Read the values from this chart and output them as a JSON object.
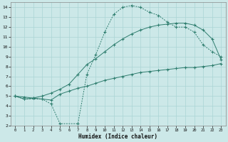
{
  "xlabel": "Humidex (Indice chaleur)",
  "xlim": [
    -0.5,
    23.5
  ],
  "ylim": [
    2,
    14.5
  ],
  "xticks": [
    0,
    1,
    2,
    3,
    4,
    5,
    6,
    7,
    8,
    9,
    10,
    11,
    12,
    13,
    14,
    15,
    16,
    17,
    18,
    19,
    20,
    21,
    22,
    23
  ],
  "yticks": [
    2,
    3,
    4,
    5,
    6,
    7,
    8,
    9,
    10,
    11,
    12,
    13,
    14
  ],
  "bg_color": "#cce8e8",
  "line_color": "#2e7d6e",
  "grid_color": "#aad4d4",
  "line1_x": [
    0,
    1,
    2,
    3,
    4,
    5,
    6,
    7,
    8,
    9,
    10,
    11,
    12,
    13,
    14,
    15,
    16,
    17,
    18,
    19,
    20,
    21,
    22,
    23
  ],
  "line1_y": [
    5.0,
    4.7,
    4.8,
    5.0,
    5.3,
    5.7,
    6.2,
    7.2,
    8.2,
    8.8,
    9.5,
    10.2,
    10.8,
    11.3,
    11.7,
    12.0,
    12.2,
    12.3,
    12.4,
    12.4,
    12.2,
    11.7,
    10.8,
    8.7
  ],
  "line2_x": [
    0,
    1,
    2,
    3,
    4,
    5,
    6,
    7,
    8,
    9,
    10,
    11,
    12,
    13,
    14,
    15,
    16,
    17,
    18,
    19,
    20,
    21,
    22,
    23
  ],
  "line2_y": [
    5.0,
    4.9,
    4.8,
    4.7,
    4.6,
    5.2,
    5.5,
    5.8,
    6.0,
    6.3,
    6.6,
    6.8,
    7.0,
    7.2,
    7.4,
    7.5,
    7.6,
    7.7,
    7.8,
    7.9,
    7.9,
    8.0,
    8.1,
    8.3
  ],
  "line3_x": [
    0,
    1,
    3,
    4,
    5,
    7,
    8,
    9,
    10,
    11,
    12,
    13,
    14,
    15,
    16,
    17,
    18,
    19,
    20,
    21,
    22,
    23
  ],
  "line3_y": [
    5.0,
    4.7,
    4.7,
    4.2,
    2.2,
    2.2,
    7.2,
    9.2,
    11.5,
    13.3,
    14.0,
    14.2,
    14.0,
    13.5,
    13.2,
    12.5,
    12.0,
    12.0,
    11.5,
    10.2,
    9.5,
    9.0
  ]
}
